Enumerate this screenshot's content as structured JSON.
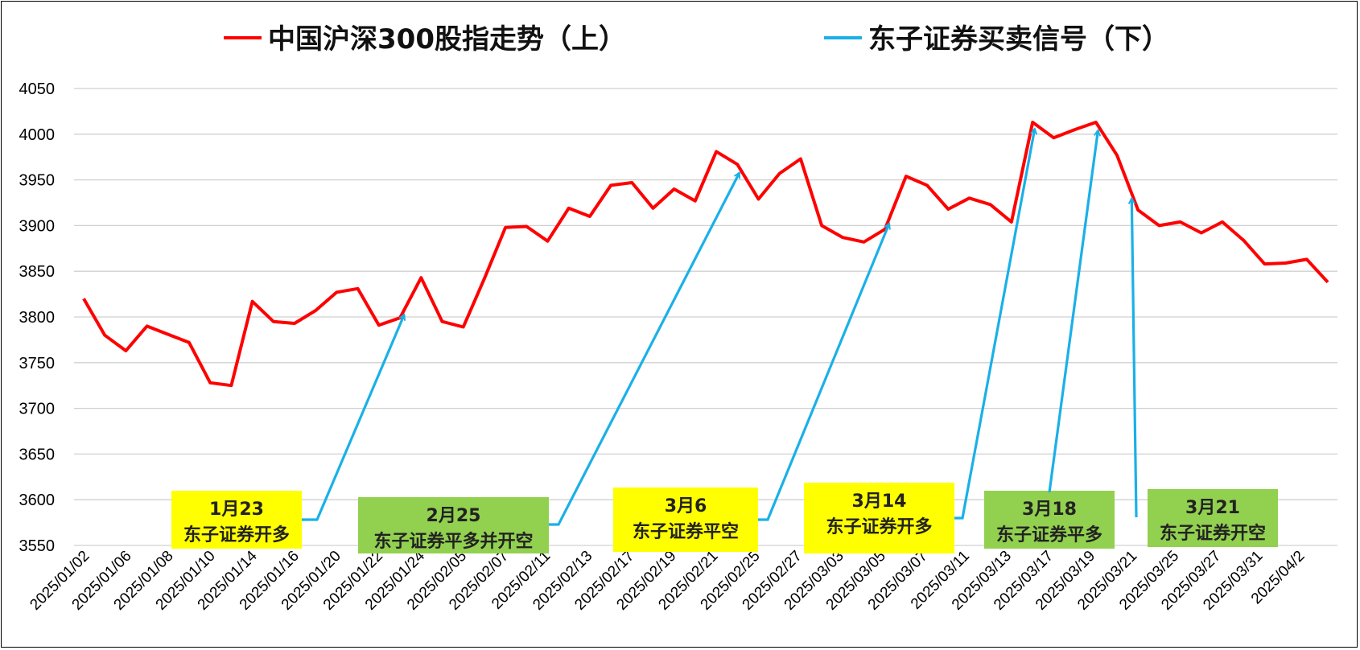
{
  "chart_data": {
    "type": "line",
    "legend": [
      {
        "name": "中国沪深300股指走势（上）",
        "color": "#ff0000"
      },
      {
        "name": "东子证券买卖信号（下）",
        "color": "#1ab0e8"
      }
    ],
    "legend_placement": "top",
    "ylim": [
      3550,
      4050
    ],
    "yticks": [
      3550,
      3600,
      3650,
      3700,
      3750,
      3800,
      3850,
      3900,
      3950,
      4000,
      4050
    ],
    "grid": true,
    "xtick_labels": [
      "2025/01/02",
      "2025/01/06",
      "2025/01/08",
      "2025/01/10",
      "2025/01/14",
      "2025/01/16",
      "2025/01/20",
      "2025/01/22",
      "2025/01/24",
      "2025/02/05",
      "2025/02/07",
      "2025/02/11",
      "2025/02/13",
      "2025/02/17",
      "2025/02/19",
      "2025/02/21",
      "2025/02/25",
      "2025/02/27",
      "2025/03/03",
      "2025/03/05",
      "2025/03/07",
      "2025/03/11",
      "2025/03/13",
      "2025/03/17",
      "2025/03/19",
      "2025/03/21",
      "2025/03/25",
      "2025/03/27",
      "2025/03/31",
      "2025/04/2"
    ],
    "series": [
      {
        "name": "中国沪深300股指走势（上）",
        "color": "#ff0000",
        "values": [
          3820,
          3780,
          3763,
          3790,
          3781,
          3772,
          3728,
          3725,
          3817,
          3795,
          3793,
          3807,
          3827,
          3831,
          3791,
          3799,
          3843,
          3795,
          3789,
          3842,
          3898,
          3899,
          3883,
          3919,
          3910,
          3944,
          3947,
          3919,
          3940,
          3927,
          3981,
          3967,
          3929,
          3957,
          3973,
          3900,
          3887,
          3882,
          3896,
          3954,
          3944,
          3918,
          3930,
          3923,
          3904,
          4013,
          3996,
          4005,
          4013,
          3977,
          3917,
          3900,
          3904,
          3892,
          3904,
          3884,
          3858,
          3859,
          3863,
          3838
        ]
      }
    ],
    "signals": [
      {
        "date": "1月23",
        "text": "东子证券开多",
        "box_color": "#ffff00",
        "base_index": 10.7,
        "target_index": 15.2
      },
      {
        "date": "2月25",
        "text": "东子证券平多并开空",
        "box_color": "#92d050",
        "base_index": 21.8,
        "target_index": 31.1
      },
      {
        "date": "3月6",
        "text": "东子证券平空",
        "box_color": "#ffff00",
        "base_index": 32.8,
        "target_index": 38.2
      },
      {
        "date": "3月14",
        "text": "东子证券开多",
        "box_color": "#ffff00",
        "base_index": 42.8,
        "target_index": 45.1
      },
      {
        "date": "3月18",
        "text": "东子证券平多",
        "box_color": "#92d050",
        "base_index": 46.9,
        "target_index": 48.1
      },
      {
        "date": "3月21",
        "text": "东子证券开空",
        "box_color": "#92d050",
        "base_index": 50.1,
        "target_index": 49.7
      }
    ]
  }
}
